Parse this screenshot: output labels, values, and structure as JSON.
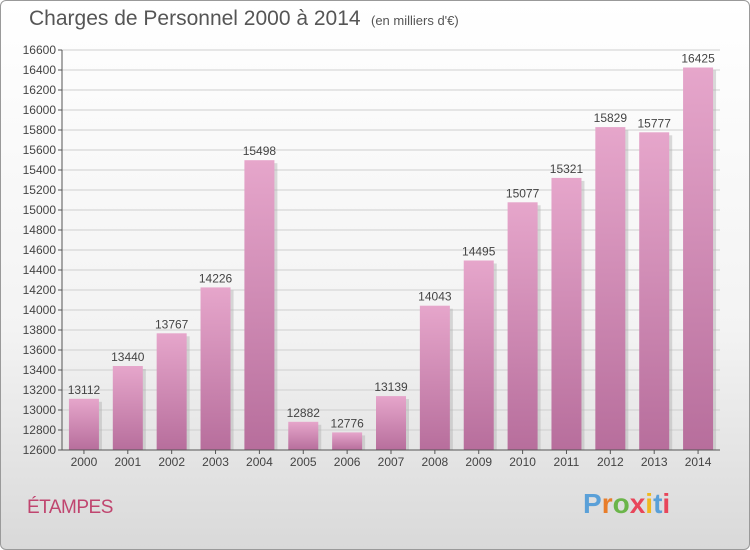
{
  "header": {
    "title": "Charges de Personnel 2000 à 2014",
    "subtitle": "(en milliers d'€)"
  },
  "footer": {
    "city": "ÉTAMPES",
    "brand": "Proxiti"
  },
  "colors": {
    "bar_top": "#e6a6cb",
    "bar_bottom": "#b76e9c",
    "city_text": "#c0456f",
    "brand_letters": [
      "#5aa0d8",
      "#e87d2a",
      "#6bb54a",
      "#e8465a",
      "#f0b81e",
      "#5aa0d8",
      "#e8465a"
    ]
  },
  "chart_data": {
    "type": "bar",
    "title": "Charges de Personnel 2000 à 2014",
    "subtitle": "(en milliers d'€)",
    "xlabel": "",
    "ylabel": "",
    "categories": [
      "2000",
      "2001",
      "2002",
      "2003",
      "2004",
      "2005",
      "2006",
      "2007",
      "2008",
      "2009",
      "2010",
      "2011",
      "2012",
      "2013",
      "2014"
    ],
    "values": [
      13112,
      13440,
      13767,
      14226,
      15498,
      12882,
      12776,
      13139,
      14043,
      14495,
      15077,
      15321,
      15829,
      15777,
      16425
    ],
    "ylim": [
      12600,
      16600
    ],
    "yticks": [
      12600,
      12800,
      13000,
      13200,
      13400,
      13600,
      13800,
      14000,
      14200,
      14400,
      14600,
      14800,
      15000,
      15200,
      15400,
      15600,
      15800,
      16000,
      16200,
      16400,
      16600
    ],
    "grid": true,
    "legend": "none"
  }
}
